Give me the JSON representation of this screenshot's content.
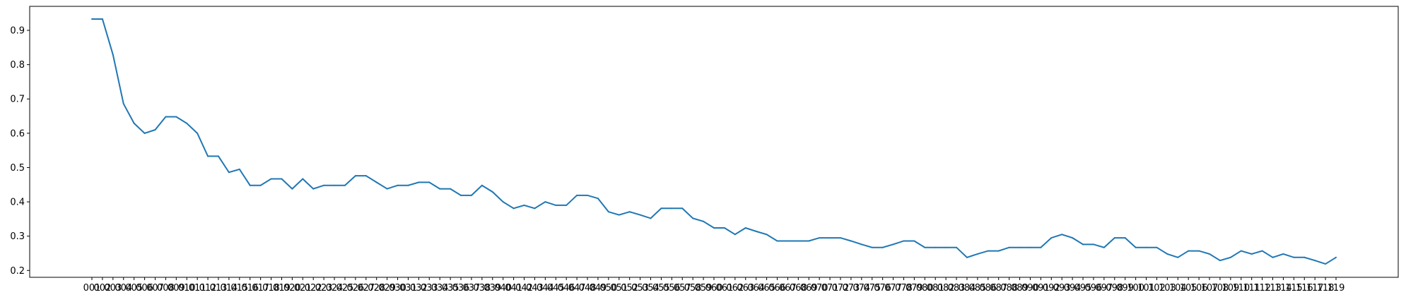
{
  "chart_data": {
    "type": "line",
    "title": "",
    "xlabel": "",
    "ylabel": "",
    "line_color": "#1f77b4",
    "grid": false,
    "legend": "none",
    "ylim": [
      0.18,
      0.97
    ],
    "yticks": [
      0.2,
      0.3,
      0.4,
      0.5,
      0.6,
      0.7,
      0.8,
      0.9
    ],
    "ytick_labels": [
      "0.2",
      "0.3",
      "0.4",
      "0.5",
      "0.6",
      "0.7",
      "0.8",
      "0.9"
    ],
    "x": [
      "001",
      "002",
      "003",
      "004",
      "005",
      "006",
      "007",
      "008",
      "009",
      "010",
      "011",
      "012",
      "013",
      "014",
      "015",
      "016",
      "017",
      "018",
      "019",
      "020",
      "021",
      "022",
      "023",
      "024",
      "025",
      "026",
      "027",
      "028",
      "029",
      "030",
      "031",
      "032",
      "033",
      "034",
      "035",
      "036",
      "037",
      "038",
      "039",
      "040",
      "041",
      "042",
      "043",
      "044",
      "045",
      "046",
      "047",
      "048",
      "049",
      "050",
      "051",
      "052",
      "053",
      "054",
      "055",
      "056",
      "057",
      "058",
      "059",
      "060",
      "061",
      "062",
      "063",
      "064",
      "065",
      "066",
      "067",
      "068",
      "069",
      "070",
      "071",
      "072",
      "073",
      "074",
      "075",
      "076",
      "077",
      "078",
      "079",
      "080",
      "081",
      "082",
      "083",
      "084",
      "085",
      "086",
      "087",
      "088",
      "089",
      "090",
      "091",
      "092",
      "093",
      "094",
      "095",
      "096",
      "097",
      "098",
      "099",
      "100",
      "101",
      "102",
      "103",
      "104",
      "105",
      "106",
      "107",
      "108",
      "109",
      "110",
      "111",
      "112",
      "113",
      "114",
      "115",
      "116",
      "117",
      "118",
      "119"
    ],
    "xtick_labels": [
      "001",
      "002",
      "003",
      "004",
      "005",
      "006",
      "007",
      "008",
      "009",
      "010",
      "011",
      "012",
      "013",
      "014",
      "015",
      "016",
      "017",
      "018",
      "019",
      "020",
      "021",
      "022",
      "023",
      "024",
      "025",
      "026",
      "027",
      "028",
      "029",
      "030",
      "031",
      "032",
      "033",
      "034",
      "035",
      "036",
      "037",
      "038",
      "039",
      "040",
      "041",
      "042",
      "043",
      "044",
      "045",
      "046",
      "047",
      "048",
      "049",
      "050",
      "051",
      "052",
      "053",
      "054",
      "055",
      "056",
      "057",
      "058",
      "059",
      "060",
      "061",
      "062",
      "063",
      "064",
      "065",
      "066",
      "067",
      "068",
      "069",
      "070",
      "071",
      "072",
      "073",
      "074",
      "075",
      "076",
      "077",
      "078",
      "079",
      "080",
      "081",
      "082",
      "083",
      "084",
      "085",
      "086",
      "087",
      "088",
      "089",
      "090",
      "091",
      "092",
      "093",
      "094",
      "095",
      "096",
      "097",
      "098",
      "099",
      "100",
      "101",
      "102",
      "103",
      "104",
      "105",
      "106",
      "107",
      "108",
      "109",
      "110",
      "111",
      "112",
      "113",
      "114",
      "115",
      "116",
      "117",
      "118",
      "119"
    ],
    "series": [
      {
        "values": [
          0.933,
          0.933,
          0.829,
          0.686,
          0.629,
          0.6,
          0.61,
          0.648,
          0.648,
          0.629,
          0.6,
          0.533,
          0.533,
          0.486,
          0.495,
          0.448,
          0.448,
          0.467,
          0.467,
          0.438,
          0.467,
          0.438,
          0.448,
          0.448,
          0.448,
          0.476,
          0.476,
          0.457,
          0.438,
          0.448,
          0.448,
          0.457,
          0.457,
          0.438,
          0.438,
          0.419,
          0.419,
          0.448,
          0.429,
          0.4,
          0.381,
          0.39,
          0.381,
          0.4,
          0.39,
          0.39,
          0.419,
          0.419,
          0.41,
          0.371,
          0.362,
          0.371,
          0.362,
          0.352,
          0.381,
          0.381,
          0.381,
          0.352,
          0.343,
          0.324,
          0.324,
          0.305,
          0.324,
          0.314,
          0.305,
          0.286,
          0.286,
          0.286,
          0.286,
          0.295,
          0.295,
          0.295,
          0.286,
          0.276,
          0.267,
          0.267,
          0.276,
          0.286,
          0.286,
          0.267,
          0.267,
          0.267,
          0.267,
          0.238,
          0.248,
          0.257,
          0.257,
          0.267,
          0.267,
          0.267,
          0.267,
          0.295,
          0.305,
          0.295,
          0.276,
          0.276,
          0.267,
          0.295,
          0.295,
          0.267,
          0.267,
          0.267,
          0.248,
          0.238,
          0.257,
          0.257,
          0.248,
          0.229,
          0.238,
          0.257,
          0.248,
          0.257,
          0.238,
          0.248,
          0.238,
          0.238,
          0.229,
          0.219,
          0.238
        ]
      }
    ]
  }
}
